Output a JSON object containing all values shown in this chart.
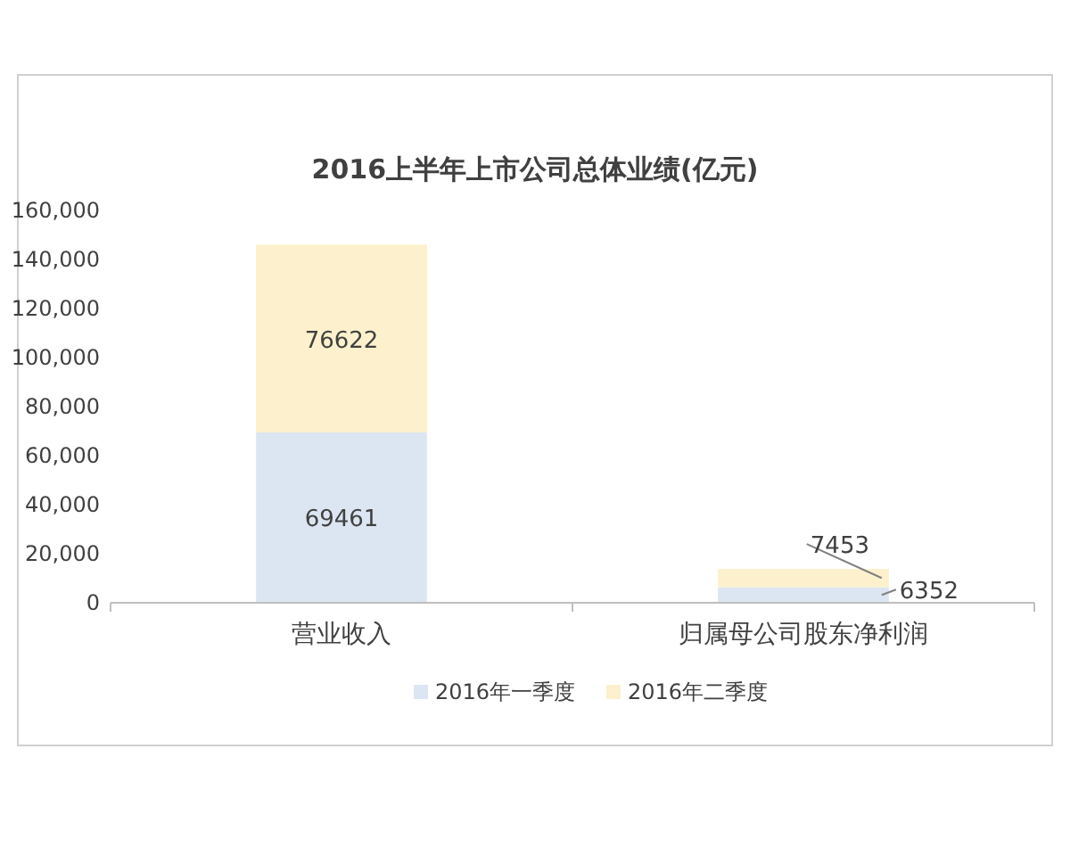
{
  "chart_data": {
    "type": "bar",
    "title": "2016上半年上市公司总体业绩(亿元)",
    "categories": [
      "营业收入",
      "归属母公司股东净利润"
    ],
    "stacked": true,
    "data_labels": true,
    "legend": "bottom",
    "ylim": [
      0,
      160000
    ],
    "yticks": [
      {
        "value": 0,
        "label": "0"
      },
      {
        "value": 20000,
        "label": "20,000"
      },
      {
        "value": 40000,
        "label": "40,000"
      },
      {
        "value": 60000,
        "label": "60,000"
      },
      {
        "value": 80000,
        "label": "80,000"
      },
      {
        "value": 100000,
        "label": "100,000"
      },
      {
        "value": 120000,
        "label": "120,000"
      },
      {
        "value": 140000,
        "label": "140,000"
      },
      {
        "value": 160000,
        "label": "160,000"
      }
    ],
    "series": [
      {
        "name": "2016年一季度",
        "color": "#dce6f2",
        "values": [
          69461,
          6352
        ]
      },
      {
        "name": "2016年二季度",
        "color": "#fcf1cc",
        "values": [
          76622,
          7453
        ]
      }
    ]
  }
}
